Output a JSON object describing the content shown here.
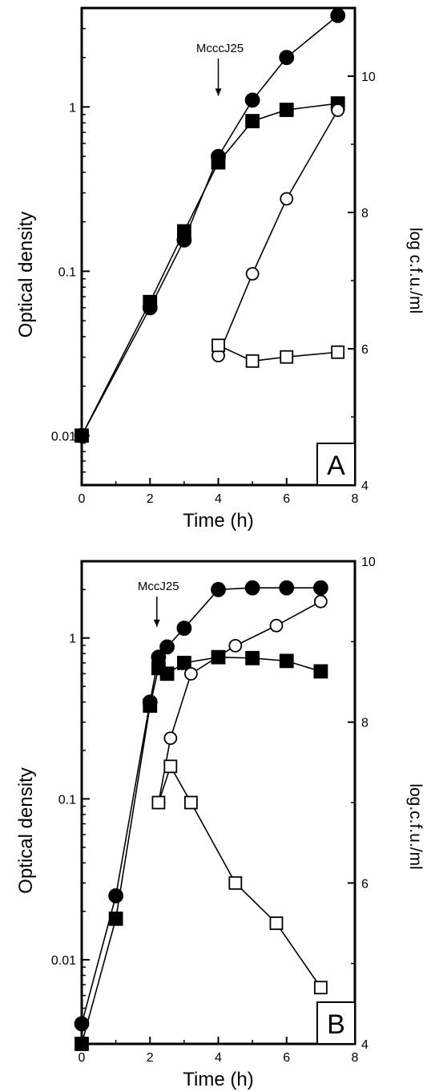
{
  "chart_data": [
    {
      "type": "line",
      "panel_label": "A",
      "xlabel": "Time (h)",
      "ylabel": "Optical density",
      "ylabel_right": "log c.f.u./ml",
      "annotation": {
        "text": "McccJ25",
        "x": 4
      },
      "xlim": [
        0,
        8
      ],
      "xticks": [
        0,
        2,
        4,
        6,
        8
      ],
      "ylim": [
        0.005,
        4
      ],
      "yscale": "log",
      "yticks": [
        0.01,
        0.1,
        1
      ],
      "ytick_labels": [
        "0.01",
        "0.1",
        "1"
      ],
      "ylim_right": [
        4,
        11
      ],
      "yticks_right": [
        4,
        6,
        8,
        10
      ],
      "series": [
        {
          "marker": "filled-circle",
          "axis": "left",
          "x": [
            0,
            2,
            3,
            4,
            5,
            6,
            7.5
          ],
          "y": [
            0.01,
            0.06,
            0.155,
            0.5,
            1.1,
            2.0,
            3.6
          ]
        },
        {
          "marker": "filled-square",
          "axis": "left",
          "x": [
            0,
            2,
            3,
            4,
            5,
            6,
            7.5
          ],
          "y": [
            0.01,
            0.065,
            0.175,
            0.46,
            0.82,
            0.96,
            1.05
          ]
        },
        {
          "marker": "open-circle",
          "axis": "right",
          "x": [
            4,
            5,
            6,
            7.5
          ],
          "y": [
            5.9,
            7.1,
            8.2,
            9.5
          ]
        },
        {
          "marker": "open-square",
          "axis": "right",
          "x": [
            4,
            5,
            6,
            7.5
          ],
          "y": [
            6.05,
            5.82,
            5.88,
            5.95
          ]
        }
      ]
    },
    {
      "type": "line",
      "panel_label": "B",
      "xlabel": "Time (h)",
      "ylabel": "Optical density",
      "ylabel_right": "log.c.f.u./ml",
      "annotation": {
        "text": "MccJ25",
        "x": 2.2
      },
      "xlim": [
        0,
        8
      ],
      "xticks": [
        0,
        2,
        4,
        6,
        8
      ],
      "ylim": [
        0.003,
        3
      ],
      "yscale": "log",
      "yticks": [
        0.01,
        0.1,
        1
      ],
      "ytick_labels": [
        "0.01",
        "0.1",
        "1"
      ],
      "ylim_right": [
        4,
        10
      ],
      "yticks_right": [
        4,
        6,
        8,
        10
      ],
      "series": [
        {
          "marker": "filled-circle",
          "axis": "left",
          "x": [
            0,
            1,
            2,
            2.25,
            2.5,
            3,
            4,
            5,
            6,
            7
          ],
          "y": [
            0.004,
            0.025,
            0.4,
            0.76,
            0.88,
            1.15,
            2.0,
            2.05,
            2.05,
            2.05
          ]
        },
        {
          "marker": "filled-square",
          "axis": "left",
          "x": [
            0,
            1,
            2,
            2.25,
            2.5,
            3,
            4,
            5,
            6,
            7
          ],
          "y": [
            0.003,
            0.018,
            0.38,
            0.65,
            0.6,
            0.7,
            0.76,
            0.75,
            0.72,
            0.62
          ]
        },
        {
          "marker": "open-circle",
          "axis": "right",
          "x": [
            2.25,
            2.6,
            3.2,
            4.5,
            5.7,
            7
          ],
          "y": [
            7.0,
            7.8,
            8.6,
            8.95,
            9.2,
            9.5
          ]
        },
        {
          "marker": "open-square",
          "axis": "right",
          "x": [
            2.25,
            2.6,
            3.2,
            4.5,
            5.7,
            7
          ],
          "y": [
            7.0,
            7.45,
            7.0,
            6.0,
            5.5,
            4.7
          ]
        }
      ]
    }
  ]
}
